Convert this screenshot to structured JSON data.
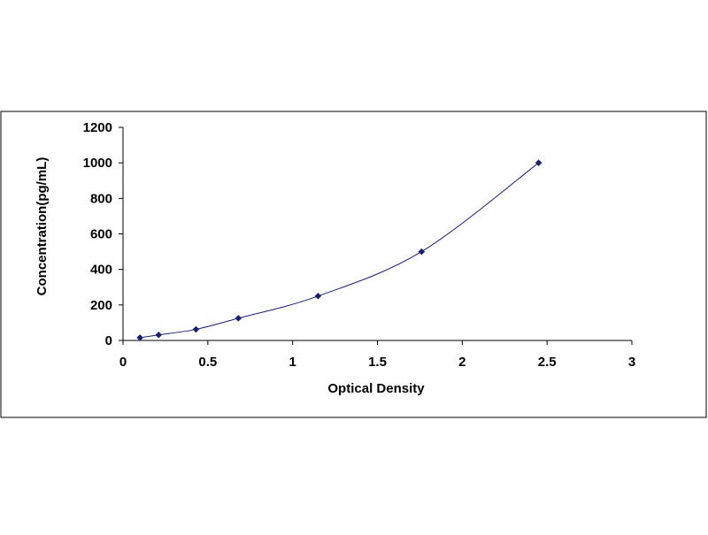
{
  "chart_data": {
    "type": "scatter",
    "title": "",
    "xlabel": "Optical Density",
    "ylabel": "Concentration(pg/mL)",
    "xlim": [
      0,
      3
    ],
    "ylim": [
      0,
      1200
    ],
    "x_ticks": [
      "0",
      "0.5",
      "1",
      "1.5",
      "2",
      "2.5",
      "3"
    ],
    "y_ticks": [
      "0",
      "200",
      "400",
      "600",
      "800",
      "1000",
      "1200"
    ],
    "grid": false,
    "legend": "none",
    "trendline": "smooth curve through points",
    "series": [
      {
        "x": [
          0.1,
          0.21,
          0.43,
          0.68,
          1.15,
          1.76,
          2.45
        ],
        "y": [
          15.6,
          31.2,
          62.5,
          125,
          250,
          500,
          1000
        ]
      }
    ],
    "colors": {
      "marker": "#1a1f6e",
      "curve": "#1a1f6e",
      "axis": "#000000",
      "frame": "#000000"
    }
  }
}
